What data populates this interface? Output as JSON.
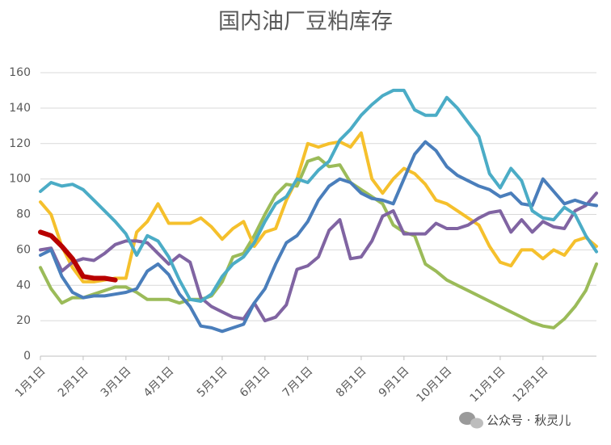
{
  "chart_data": {
    "type": "line",
    "title": "国内油厂豆粕库存",
    "watermark": "公众号 · 秋灵儿",
    "categories": [
      "1月1日",
      null,
      null,
      null,
      "2月1日",
      null,
      null,
      null,
      "3月1日",
      null,
      null,
      null,
      "4月1日",
      null,
      null,
      null,
      null,
      "5月1日",
      null,
      null,
      null,
      "6月1日",
      null,
      null,
      null,
      "7月1日",
      null,
      null,
      null,
      null,
      "8月1日",
      null,
      null,
      null,
      "9月1日",
      null,
      null,
      null,
      "10月1日",
      null,
      null,
      null,
      null,
      "11月1日",
      null,
      null,
      null,
      "12月1日",
      null,
      null,
      null,
      null,
      null
    ],
    "ylim": [
      0,
      160
    ],
    "yticks": [
      0,
      20,
      40,
      60,
      80,
      100,
      120,
      140,
      160
    ],
    "grid": true,
    "series": [
      {
        "color": "#9bbb59",
        "values": [
          50,
          38,
          30,
          33,
          33,
          35,
          37,
          39,
          39,
          36,
          32,
          32,
          32,
          30,
          32,
          32,
          34,
          42,
          56,
          58,
          68,
          80,
          91,
          97,
          96,
          110,
          112,
          107,
          108,
          98,
          94,
          90,
          86,
          74,
          70,
          68,
          52,
          48,
          43,
          40,
          37,
          34,
          31,
          28,
          25,
          22,
          19,
          17,
          16,
          21,
          28,
          37,
          52
        ]
      },
      {
        "color": "#f5c02c",
        "values": [
          87,
          80,
          62,
          50,
          42,
          42,
          43,
          44,
          44,
          70,
          76,
          86,
          75,
          75,
          75,
          78,
          73,
          66,
          72,
          76,
          62,
          70,
          72,
          88,
          100,
          120,
          118,
          120,
          121,
          118,
          126,
          100,
          92,
          100,
          106,
          103,
          97,
          88,
          86,
          82,
          78,
          74,
          62,
          53,
          51,
          60,
          60,
          55,
          60,
          57,
          65,
          67,
          62
        ]
      },
      {
        "color": "#8064a2",
        "values": [
          60,
          61,
          48,
          53,
          55,
          54,
          58,
          63,
          65,
          65,
          64,
          58,
          52,
          57,
          53,
          33,
          28,
          25,
          22,
          21,
          30,
          20,
          22,
          29,
          49,
          51,
          56,
          71,
          77,
          55,
          56,
          65,
          79,
          82,
          69,
          69,
          69,
          75,
          72,
          72,
          74,
          78,
          81,
          82,
          70,
          77,
          70,
          76,
          73,
          72,
          82,
          85,
          92
        ]
      },
      {
        "color": "#4a7ebb",
        "values": [
          57,
          60,
          45,
          36,
          33,
          34,
          34,
          35,
          36,
          38,
          48,
          52,
          46,
          35,
          28,
          17,
          16,
          14,
          16,
          18,
          30,
          38,
          52,
          64,
          68,
          76,
          88,
          96,
          100,
          98,
          92,
          89,
          88,
          86,
          100,
          114,
          121,
          116,
          107,
          102,
          99,
          96,
          94,
          90,
          92,
          86,
          85,
          100,
          93,
          86,
          88,
          86,
          85
        ]
      },
      {
        "color": "#4bacc6",
        "values": [
          93,
          98,
          96,
          97,
          94,
          88,
          82,
          76,
          69,
          57,
          68,
          65,
          56,
          43,
          32,
          31,
          35,
          45,
          52,
          56,
          64,
          76,
          86,
          90,
          100,
          98,
          105,
          110,
          122,
          128,
          136,
          142,
          147,
          150,
          150,
          139,
          136,
          136,
          146,
          140,
          132,
          124,
          103,
          95,
          106,
          99,
          82,
          78,
          77,
          84,
          80,
          68,
          59
        ]
      },
      {
        "color": "#b80000",
        "values": [
          70,
          68,
          62,
          55,
          45,
          44,
          44,
          43,
          null,
          null,
          null,
          null,
          null,
          null,
          null,
          null,
          null,
          null,
          null,
          null,
          null,
          null,
          null,
          null,
          null,
          null,
          null,
          null,
          null,
          null,
          null,
          null,
          null,
          null,
          null,
          null,
          null,
          null,
          null,
          null,
          null,
          null,
          null,
          null,
          null,
          null,
          null,
          null,
          null,
          null,
          null,
          null,
          null
        ]
      }
    ]
  }
}
